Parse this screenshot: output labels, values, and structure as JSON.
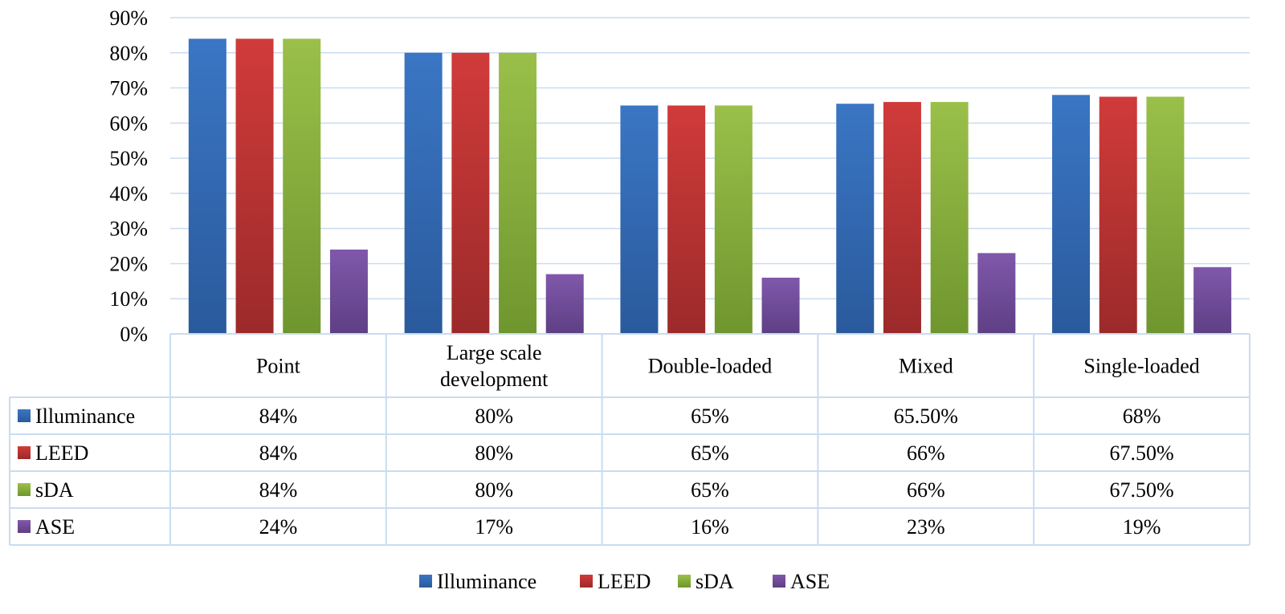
{
  "chart_data": {
    "type": "bar",
    "categories": [
      [
        "Point"
      ],
      [
        "Large scale",
        "development"
      ],
      [
        "Double-loaded"
      ],
      [
        "Mixed"
      ],
      [
        "Single-loaded"
      ]
    ],
    "series": [
      {
        "name": "Illuminance",
        "values": [
          84,
          80,
          65,
          65.5,
          68
        ],
        "labels": [
          "84%",
          "80%",
          "65%",
          "65.50%",
          "68%"
        ],
        "color": "#3a76c4",
        "color_dark": "#2a5a9c"
      },
      {
        "name": "LEED",
        "values": [
          84,
          80,
          65,
          66,
          67.5
        ],
        "labels": [
          "84%",
          "80%",
          "65%",
          "66%",
          "67.50%"
        ],
        "color": "#d03b3a",
        "color_dark": "#9c2a2a"
      },
      {
        "name": "sDA",
        "values": [
          84,
          80,
          65,
          66,
          67.5
        ],
        "labels": [
          "84%",
          "80%",
          "65%",
          "66%",
          "67.50%"
        ],
        "color": "#9ac04a",
        "color_dark": "#6f962e"
      },
      {
        "name": "ASE",
        "values": [
          24,
          17,
          16,
          23,
          19
        ],
        "labels": [
          "24%",
          "17%",
          "16%",
          "23%",
          "19%"
        ],
        "color": "#8058ab",
        "color_dark": "#5e3f84"
      }
    ],
    "ylim": [
      0,
      90
    ],
    "yticks": [
      0,
      10,
      20,
      30,
      40,
      50,
      60,
      70,
      80,
      90
    ],
    "ytick_labels": [
      "0%",
      "10%",
      "20%",
      "30%",
      "40%",
      "50%",
      "60%",
      "70%",
      "80%",
      "90%"
    ],
    "grid": true,
    "data_table": true,
    "legend_position": "bottom",
    "grid_color": "#c9dcef",
    "table_border_color": "#c9dcef"
  }
}
